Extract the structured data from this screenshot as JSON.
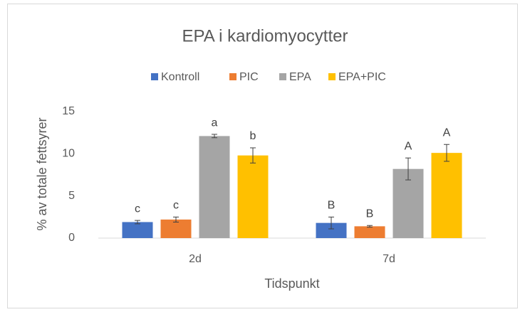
{
  "chart_data": {
    "type": "bar",
    "title": "EPA i kardiomyocytter",
    "x_label": "Tidspunkt",
    "y_label": "% av totale fettsyrer",
    "categories": [
      "2d",
      "7d"
    ],
    "series": [
      {
        "name": "Kontroll",
        "color": "#4472c4",
        "values": [
          1.9,
          1.8
        ],
        "errors": [
          0.2,
          0.7
        ],
        "labels": [
          "c",
          "B"
        ]
      },
      {
        "name": "PIC",
        "color": "#ed7d31",
        "values": [
          2.2,
          1.4
        ],
        "errors": [
          0.3,
          0.1
        ],
        "labels": [
          "c",
          "B"
        ]
      },
      {
        "name": "EPA",
        "color": "#a5a5a5",
        "values": [
          12.1,
          8.2
        ],
        "errors": [
          0.2,
          1.3
        ],
        "labels": [
          "a",
          "A"
        ]
      },
      {
        "name": "EPA+PIC",
        "color": "#ffc000",
        "values": [
          9.8,
          10.1
        ],
        "errors": [
          0.9,
          1.0
        ],
        "labels": [
          "b",
          "A"
        ]
      }
    ],
    "ylim": [
      0,
      15
    ],
    "yticks": [
      0,
      5,
      10,
      15
    ],
    "grid": false,
    "legend": "top"
  }
}
